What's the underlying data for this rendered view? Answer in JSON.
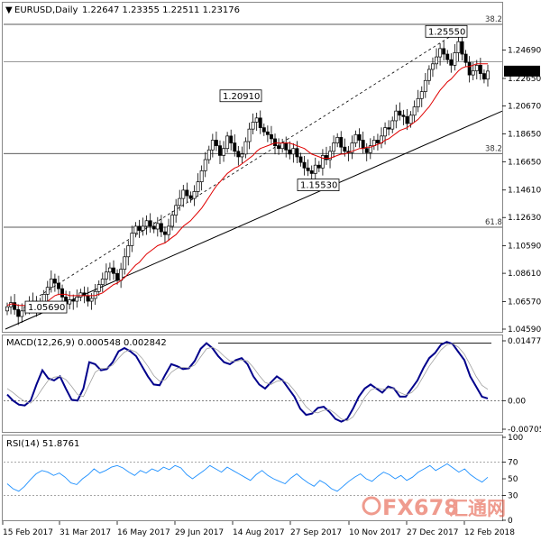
{
  "header": {
    "symbol": "EURUSD,Daily",
    "ohlc": "1.22647 1.23355 1.22511 1.23176",
    "dropdown_glyph": "▼"
  },
  "watermark": {
    "text": "FX678",
    "cn": "汇通网",
    "brand_color": "#e34a33"
  },
  "chart_data": [
    {
      "type": "candlestick",
      "title": "EURUSD,Daily",
      "ylim": [
        1.0459,
        1.275
      ],
      "y_ticks": [
        "1.24690",
        "1.22650",
        "1.20670",
        "1.18650",
        "1.16650",
        "1.14610",
        "1.12630",
        "1.10590",
        "1.08610",
        "1.06570",
        "1.04590"
      ],
      "last_price_label": "1.23176",
      "last_price": 1.23176,
      "x_labels": [
        "15 Feb 2017",
        "31 Mar 2017",
        "16 May 2017",
        "29 Jun 2017",
        "14 Aug 2017",
        "27 Sep 2017",
        "10 Nov 2017",
        "27 Dec 2017",
        "12 Feb 2018"
      ],
      "annotations": [
        {
          "text": "1.05690",
          "value": 1.0569
        },
        {
          "text": "1.20910",
          "value": 1.2091
        },
        {
          "text": "1.15530",
          "value": 1.1553
        },
        {
          "text": "1.25550",
          "value": 1.2555
        }
      ],
      "fib_levels": [
        {
          "label": "38.2",
          "value": 1.2555
        },
        {
          "label": "38.2",
          "value": 1.1724
        },
        {
          "label": "61.8",
          "value": 1.1193
        }
      ],
      "horizontal_level": 1.2386,
      "close_series": [
        1.062,
        1.065,
        1.06,
        1.055,
        1.059,
        1.062,
        1.065,
        1.066,
        1.061,
        1.063,
        1.071,
        1.076,
        1.082,
        1.079,
        1.075,
        1.069,
        1.064,
        1.067,
        1.066,
        1.069,
        1.072,
        1.07,
        1.066,
        1.068,
        1.073,
        1.078,
        1.082,
        1.087,
        1.09,
        1.086,
        1.081,
        1.089,
        1.098,
        1.106,
        1.115,
        1.12,
        1.117,
        1.12,
        1.124,
        1.12,
        1.118,
        1.122,
        1.116,
        1.114,
        1.12,
        1.128,
        1.135,
        1.14,
        1.146,
        1.142,
        1.14,
        1.145,
        1.152,
        1.16,
        1.168,
        1.175,
        1.182,
        1.178,
        1.171,
        1.176,
        1.185,
        1.18,
        1.174,
        1.17,
        1.172,
        1.181,
        1.19,
        1.195,
        1.198,
        1.191,
        1.188,
        1.186,
        1.183,
        1.178,
        1.176,
        1.18,
        1.175,
        1.172,
        1.176,
        1.17,
        1.166,
        1.162,
        1.16,
        1.158,
        1.164,
        1.162,
        1.171,
        1.168,
        1.174,
        1.18,
        1.184,
        1.177,
        1.174,
        1.173,
        1.18,
        1.186,
        1.182,
        1.176,
        1.173,
        1.178,
        1.182,
        1.18,
        1.185,
        1.191,
        1.19,
        1.196,
        1.203,
        1.2,
        1.199,
        1.194,
        1.2,
        1.206,
        1.212,
        1.217,
        1.225,
        1.233,
        1.237,
        1.242,
        1.248,
        1.244,
        1.24,
        1.236,
        1.245,
        1.253,
        1.244,
        1.238,
        1.229,
        1.232,
        1.236,
        1.23,
        1.226,
        1.23176
      ],
      "ma_series": [
        1.063,
        1.064,
        1.064,
        1.063,
        1.063,
        1.063,
        1.063,
        1.064,
        1.064,
        1.064,
        1.065,
        1.066,
        1.068,
        1.07,
        1.071,
        1.071,
        1.071,
        1.07,
        1.07,
        1.07,
        1.07,
        1.07,
        1.07,
        1.07,
        1.07,
        1.071,
        1.072,
        1.074,
        1.076,
        1.078,
        1.079,
        1.081,
        1.083,
        1.086,
        1.089,
        1.092,
        1.094,
        1.097,
        1.1,
        1.102,
        1.104,
        1.106,
        1.107,
        1.108,
        1.11,
        1.112,
        1.114,
        1.117,
        1.12,
        1.122,
        1.124,
        1.127,
        1.13,
        1.133,
        1.137,
        1.141,
        1.145,
        1.149,
        1.152,
        1.155,
        1.158,
        1.16,
        1.162,
        1.163,
        1.165,
        1.167,
        1.169,
        1.171,
        1.174,
        1.176,
        1.177,
        1.178,
        1.179,
        1.18,
        1.18,
        1.18,
        1.18,
        1.18,
        1.179,
        1.178,
        1.177,
        1.176,
        1.174,
        1.172,
        1.171,
        1.17,
        1.169,
        1.169,
        1.169,
        1.17,
        1.171,
        1.172,
        1.172,
        1.173,
        1.174,
        1.175,
        1.176,
        1.176,
        1.177,
        1.177,
        1.178,
        1.179,
        1.18,
        1.182,
        1.183,
        1.185,
        1.187,
        1.189,
        1.19,
        1.191,
        1.193,
        1.195,
        1.197,
        1.2,
        1.203,
        1.206,
        1.21,
        1.214,
        1.218,
        1.221,
        1.224,
        1.226,
        1.229,
        1.232,
        1.234,
        1.235,
        1.235,
        1.236,
        1.237,
        1.237,
        1.237,
        1.237
      ]
    },
    {
      "type": "line",
      "title": "MACD(12,26,9) 0.000548 0.002842",
      "ylim": [
        -0.00705,
        0.014776
      ],
      "y_ticks": [
        "0.014776",
        "0.00",
        "-0.00705"
      ],
      "series": [
        {
          "name": "MACD",
          "values": [
            0.0015,
            0.0,
            -0.001,
            -0.0012,
            0.0,
            0.004,
            0.0075,
            0.0055,
            0.005,
            0.006,
            0.003,
            0.0002,
            0.0,
            0.003,
            0.0095,
            0.009,
            0.0075,
            0.0078,
            0.0095,
            0.0122,
            0.013,
            0.0122,
            0.011,
            0.0085,
            0.006,
            0.004,
            0.0038,
            0.0065,
            0.009,
            0.0085,
            0.0078,
            0.008,
            0.0098,
            0.0128,
            0.0142,
            0.013,
            0.011,
            0.0095,
            0.009,
            0.01,
            0.0105,
            0.009,
            0.006,
            0.004,
            0.003,
            0.0045,
            0.006,
            0.005,
            0.003,
            0.001,
            -0.002,
            -0.0035,
            -0.0032,
            -0.0018,
            -0.0015,
            -0.0028,
            -0.0045,
            -0.0052,
            -0.0045,
            -0.002,
            0.001,
            0.003,
            0.004,
            0.003,
            0.002,
            0.0035,
            0.003,
            0.001,
            0.001,
            0.003,
            0.005,
            0.008,
            0.0105,
            0.0118,
            0.0138,
            0.0145,
            0.014,
            0.012,
            0.01,
            0.006,
            0.0035,
            0.001,
            0.00055
          ]
        },
        {
          "name": "Signal",
          "values": [
            0.003,
            0.002,
            0.0008,
            -0.0002,
            -0.0006,
            0.0008,
            0.003,
            0.005,
            0.0058,
            0.006,
            0.0052,
            0.0035,
            0.0015,
            0.001,
            0.004,
            0.007,
            0.008,
            0.008,
            0.0088,
            0.0105,
            0.012,
            0.0126,
            0.012,
            0.0105,
            0.0085,
            0.0062,
            0.0048,
            0.0052,
            0.007,
            0.008,
            0.0082,
            0.0081,
            0.0088,
            0.0108,
            0.0128,
            0.0132,
            0.0124,
            0.011,
            0.0098,
            0.0097,
            0.01,
            0.0098,
            0.0082,
            0.0062,
            0.0045,
            0.004,
            0.0048,
            0.005,
            0.0042,
            0.0025,
            0.0005,
            -0.0015,
            -0.0028,
            -0.003,
            -0.0024,
            -0.0022,
            -0.0032,
            -0.0045,
            -0.005,
            -0.004,
            -0.0018,
            0.0008,
            0.0026,
            0.0032,
            0.0028,
            0.003,
            0.003,
            0.002,
            0.0014,
            0.002,
            0.0035,
            0.006,
            0.0085,
            0.0105,
            0.0125,
            0.0138,
            0.0141,
            0.0132,
            0.0115,
            0.0088,
            0.006,
            0.0038,
            0.0028
          ]
        }
      ],
      "reference_level": 0.0142
    },
    {
      "type": "line",
      "title": "RSI(14) 51.8761",
      "ylim": [
        0,
        100
      ],
      "y_ticks": [
        "100",
        "70",
        "50",
        "30",
        "0"
      ],
      "levels": [
        70,
        30
      ],
      "series": [
        {
          "name": "RSI",
          "values": [
            44,
            38,
            35,
            41,
            49,
            56,
            60,
            58,
            54,
            57,
            52,
            45,
            43,
            50,
            55,
            62,
            57,
            60,
            64,
            66,
            63,
            58,
            54,
            60,
            57,
            62,
            59,
            64,
            61,
            66,
            63,
            55,
            50,
            55,
            60,
            66,
            62,
            58,
            64,
            60,
            56,
            52,
            48,
            55,
            60,
            54,
            50,
            47,
            44,
            51,
            56,
            50,
            45,
            41,
            48,
            44,
            38,
            35,
            41,
            47,
            52,
            56,
            50,
            47,
            53,
            58,
            55,
            50,
            54,
            48,
            52,
            58,
            62,
            66,
            60,
            64,
            68,
            63,
            58,
            62,
            55,
            50,
            46,
            51.9
          ]
        }
      ]
    }
  ]
}
